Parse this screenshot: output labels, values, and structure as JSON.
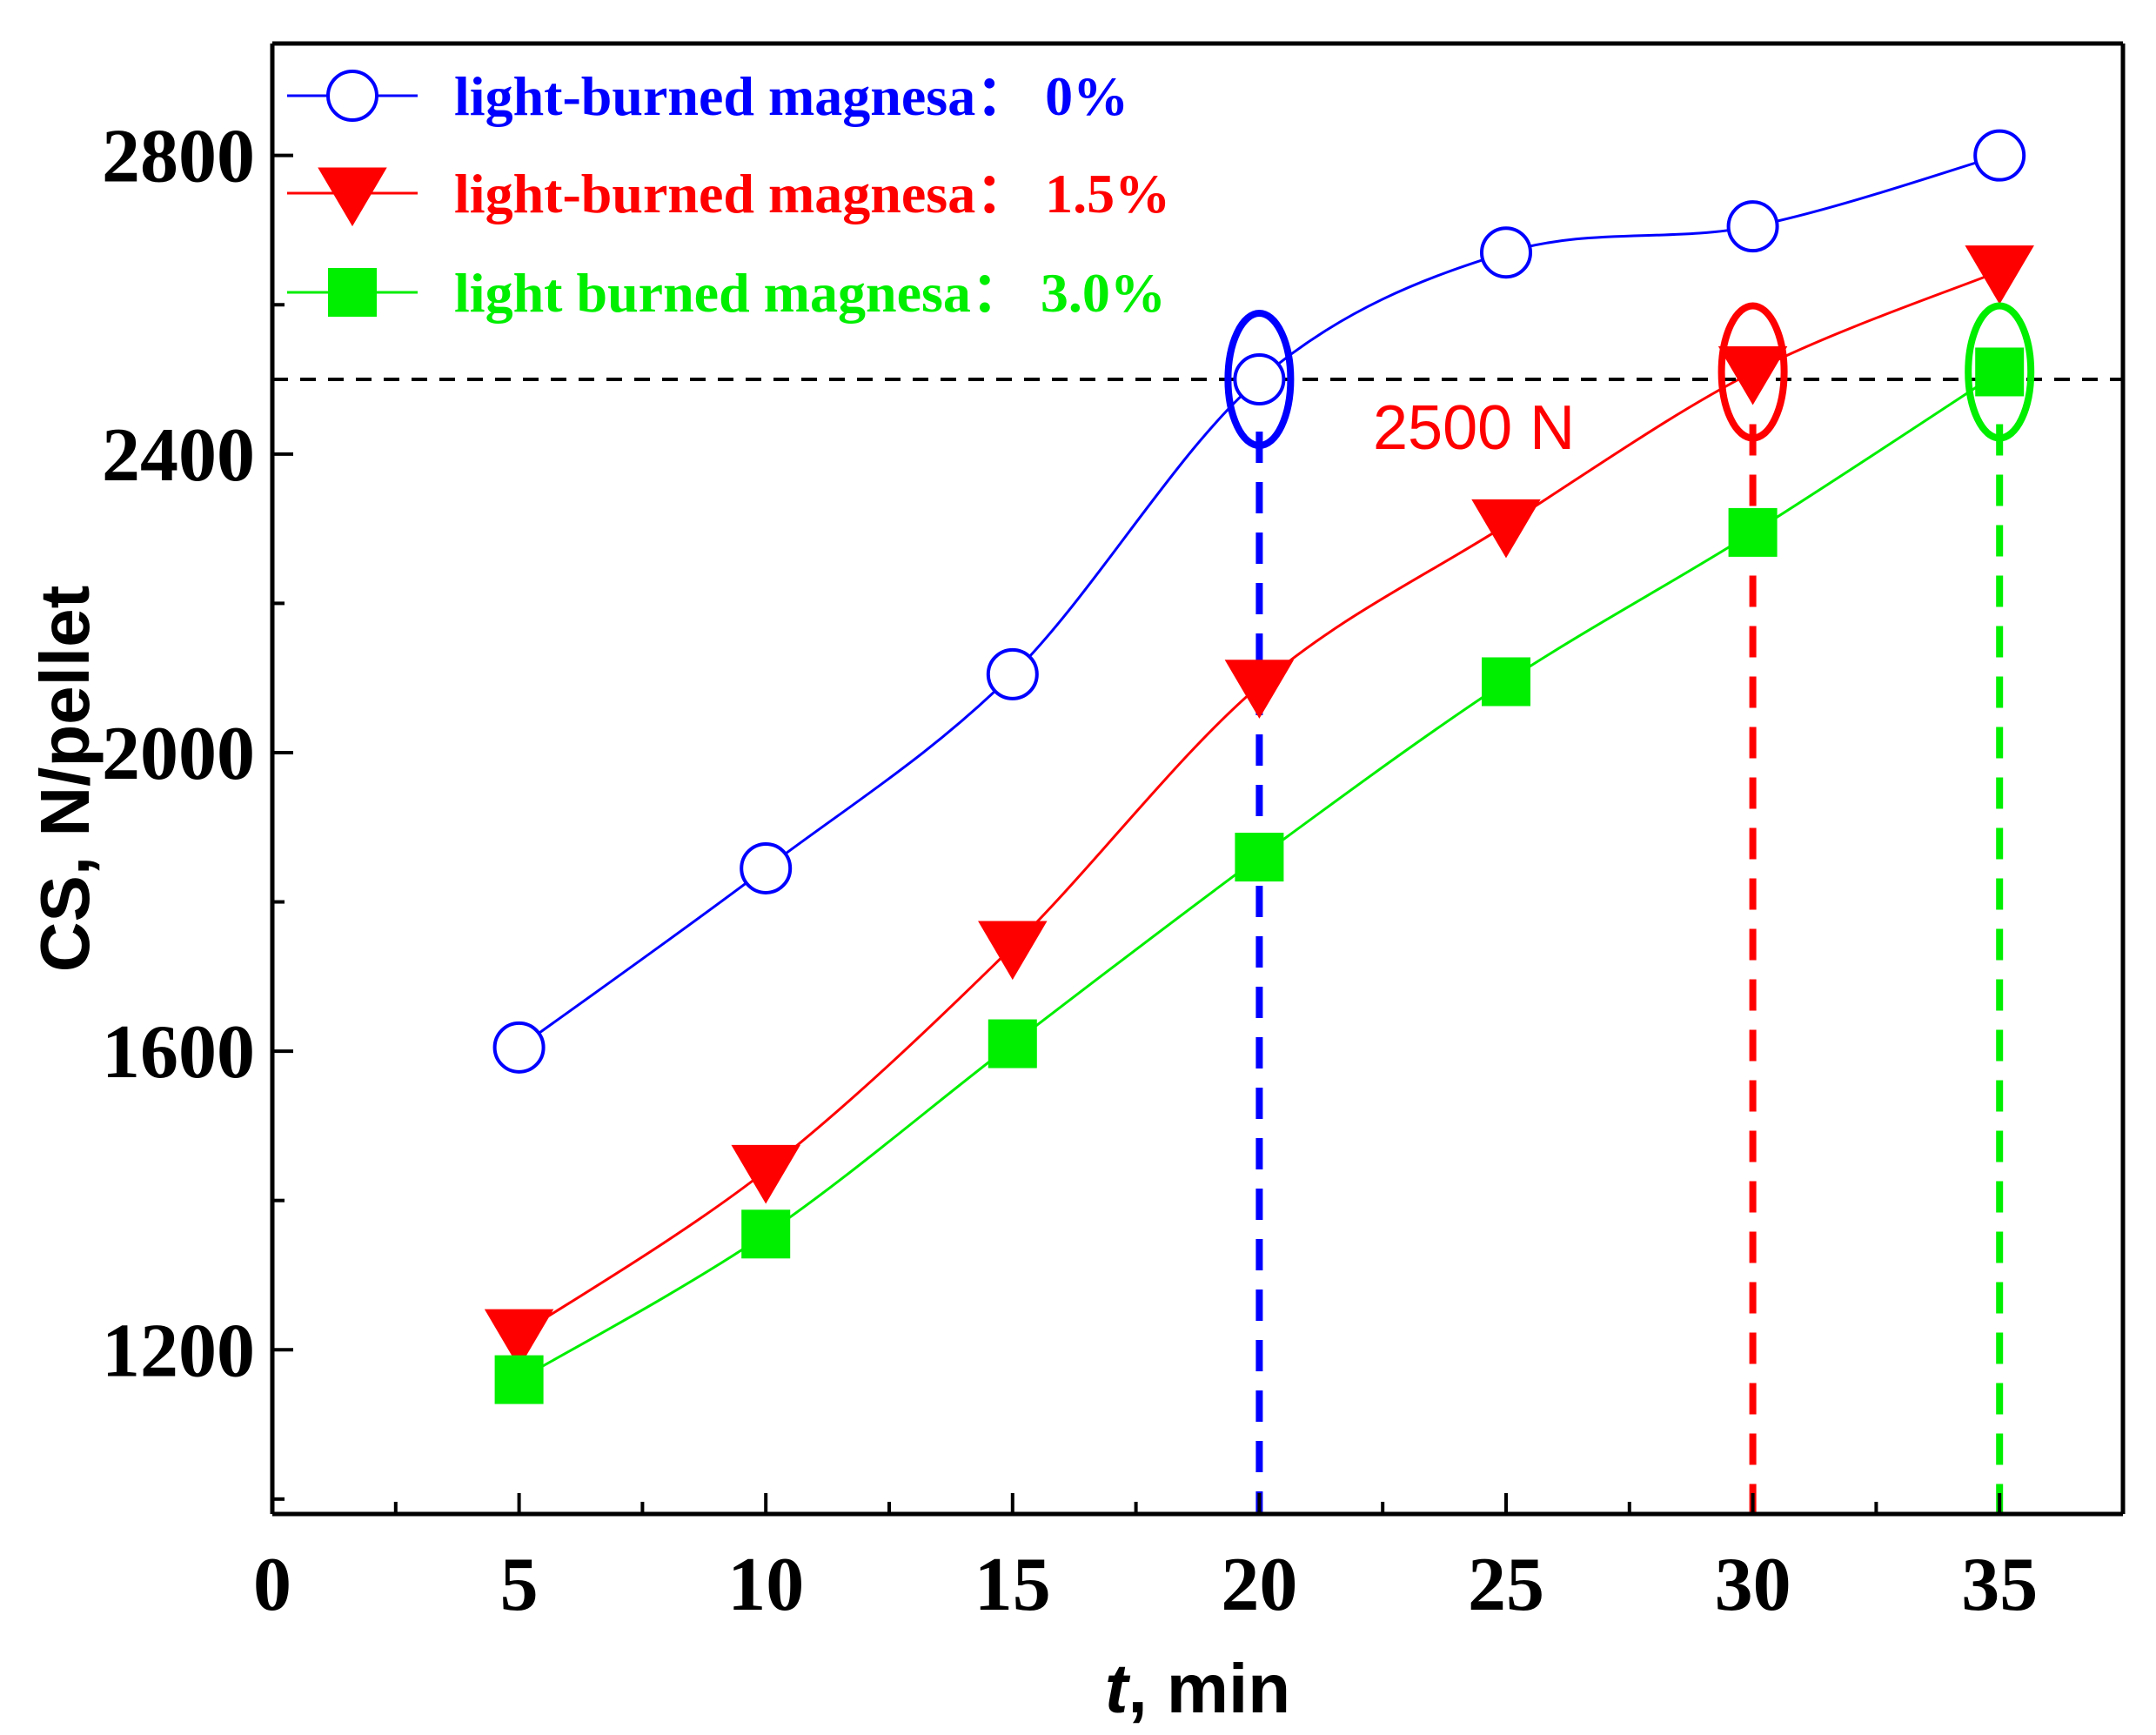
{
  "chart_data": {
    "type": "line",
    "title": "",
    "xlabel_italic": "t",
    "xlabel_rest": ", min",
    "ylabel": "CS, N/pellet",
    "xlim": [
      0,
      37.5
    ],
    "ylim": [
      980,
      2950
    ],
    "x_ticks": [
      0,
      5,
      10,
      15,
      20,
      25,
      30,
      35
    ],
    "x_minor_ticks": [
      2.5,
      7.5,
      12.5,
      17.5,
      22.5,
      27.5,
      32.5
    ],
    "y_ticks": [
      1200,
      1600,
      2000,
      2400,
      2800
    ],
    "y_minor_ticks": [
      1000,
      1400,
      1800,
      2200,
      2600
    ],
    "x": [
      5,
      10,
      15,
      20,
      25,
      30,
      35
    ],
    "series": [
      {
        "name": "light-burned magnesa：  0%",
        "color": "#0000ff",
        "marker": "circle-open",
        "values": [
          1605,
          1845,
          2105,
          2500,
          2670,
          2705,
          2800
        ]
      },
      {
        "name": "light-burned magnesa：  1.5%",
        "color": "#ff0000",
        "marker": "triangle-down",
        "values": [
          1220,
          1440,
          1740,
          2090,
          2305,
          2510,
          2645
        ]
      },
      {
        "name": "light burned magnesa：  3.0%",
        "color": "#00ee00",
        "marker": "square",
        "values": [
          1160,
          1355,
          1610,
          1860,
          2095,
          2295,
          2510
        ]
      }
    ],
    "threshold": {
      "value": 2500,
      "label": "2500 N",
      "label_color": "#ff0000",
      "style": "dashed",
      "color": "#000000"
    },
    "highlights": [
      {
        "x": 20,
        "y": 2500,
        "color": "#0000ff"
      },
      {
        "x": 30,
        "y": 2510,
        "color": "#ff0000"
      },
      {
        "x": 35,
        "y": 2510,
        "color": "#00ee00"
      }
    ],
    "legend_position": "top-left",
    "grid": false
  }
}
